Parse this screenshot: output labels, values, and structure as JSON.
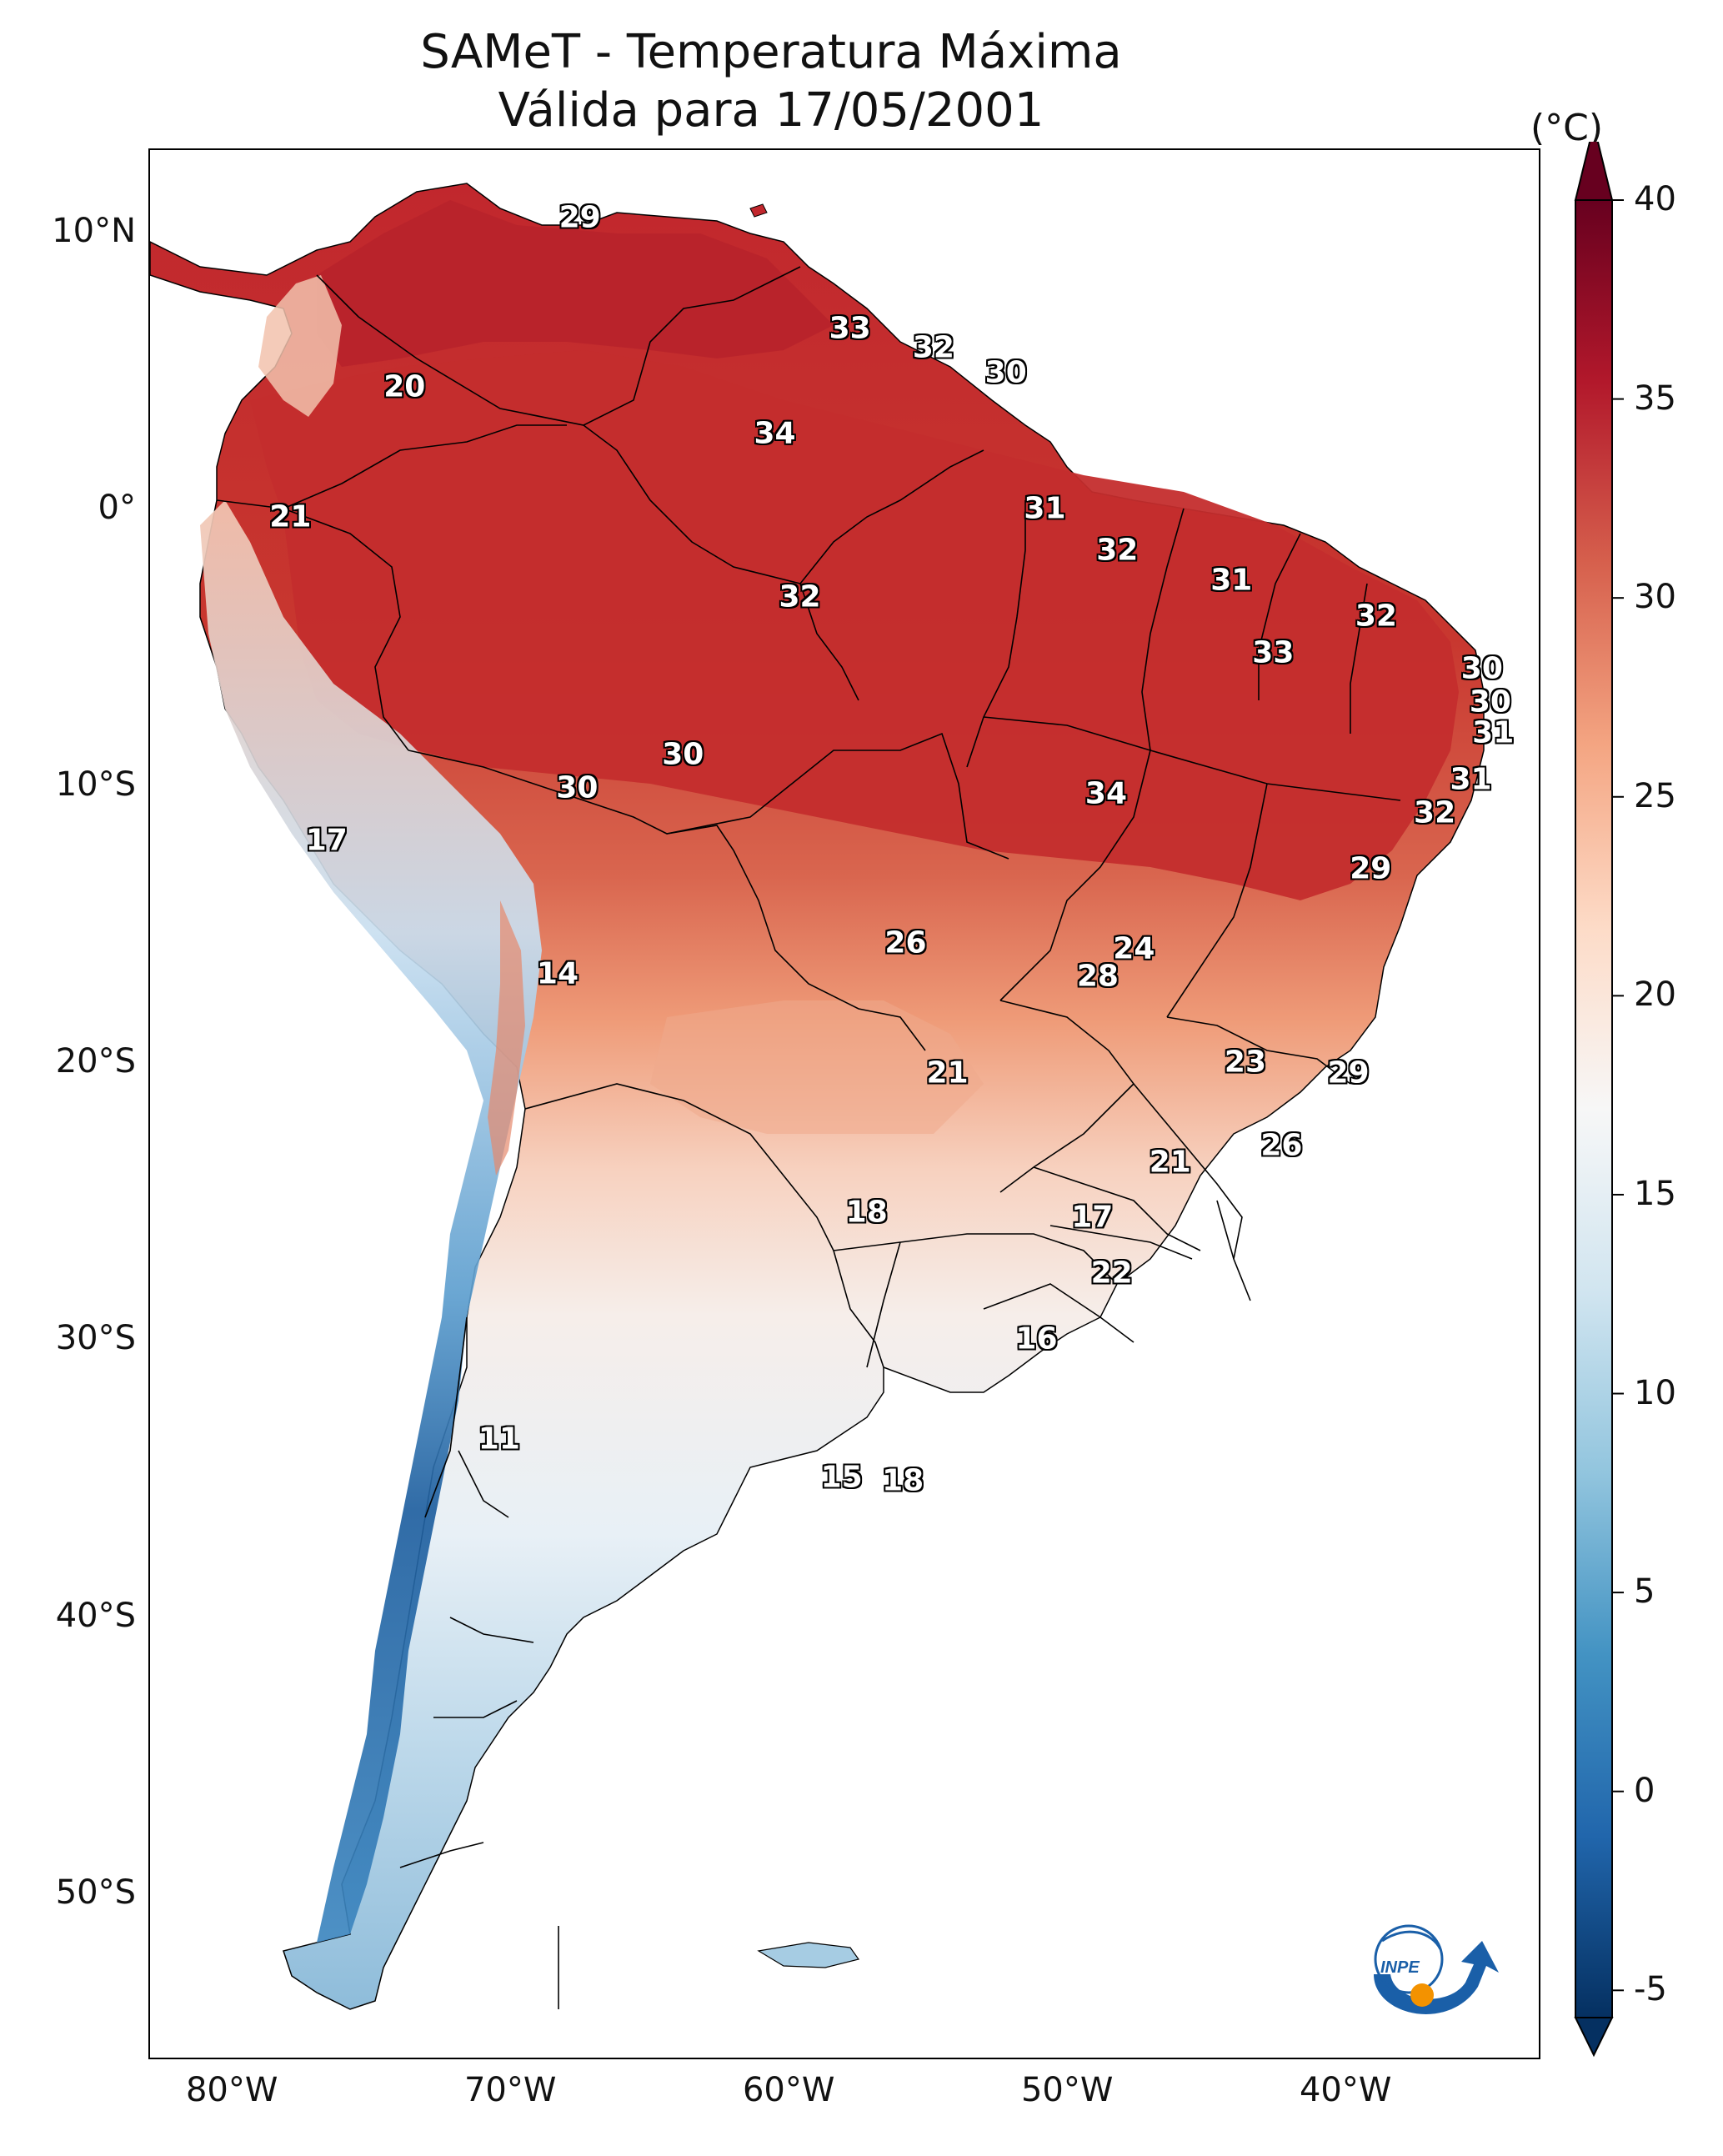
{
  "title": {
    "line1": "SAMeT - Temperatura Máxima",
    "line2": "Válida para 17/05/2001"
  },
  "map": {
    "extent_lon": [
      -83,
      -33
    ],
    "extent_lat": [
      -56,
      13
    ],
    "lat_ticks": [
      "10°N",
      "0°",
      "10°S",
      "20°S",
      "30°S",
      "40°S",
      "50°S"
    ],
    "lon_ticks": [
      "80°W",
      "70°W",
      "60°W",
      "50°W",
      "40°W"
    ],
    "isotherm_labels": [
      {
        "text": "29",
        "lon": -67.5,
        "lat": 10.5
      },
      {
        "text": "33",
        "lon": -57.8,
        "lat": 6.5
      },
      {
        "text": "32",
        "lon": -54.8,
        "lat": 5.8
      },
      {
        "text": "30",
        "lon": -52.2,
        "lat": 4.9
      },
      {
        "text": "20",
        "lon": -73.8,
        "lat": 4.4
      },
      {
        "text": "34",
        "lon": -60.5,
        "lat": 2.7
      },
      {
        "text": "21",
        "lon": -77.9,
        "lat": -0.3
      },
      {
        "text": "31",
        "lon": -50.8,
        "lat": 0.0
      },
      {
        "text": "32",
        "lon": -48.2,
        "lat": -1.5
      },
      {
        "text": "31",
        "lon": -44.1,
        "lat": -2.6
      },
      {
        "text": "32",
        "lon": -59.6,
        "lat": -3.2
      },
      {
        "text": "32",
        "lon": -38.9,
        "lat": -3.9
      },
      {
        "text": "33",
        "lon": -42.6,
        "lat": -5.2
      },
      {
        "text": "30",
        "lon": -35.1,
        "lat": -5.8
      },
      {
        "text": "30",
        "lon": -34.8,
        "lat": -7.0
      },
      {
        "text": "31",
        "lon": -34.7,
        "lat": -8.1
      },
      {
        "text": "30",
        "lon": -63.8,
        "lat": -8.9
      },
      {
        "text": "30",
        "lon": -67.6,
        "lat": -10.1
      },
      {
        "text": "34",
        "lon": -48.6,
        "lat": -10.3
      },
      {
        "text": "31",
        "lon": -35.5,
        "lat": -9.8
      },
      {
        "text": "32",
        "lon": -36.8,
        "lat": -11.0
      },
      {
        "text": "17",
        "lon": -76.6,
        "lat": -12.0
      },
      {
        "text": "29",
        "lon": -39.1,
        "lat": -13.0
      },
      {
        "text": "26",
        "lon": -55.8,
        "lat": -15.7
      },
      {
        "text": "24",
        "lon": -47.6,
        "lat": -15.9
      },
      {
        "text": "28",
        "lon": -48.9,
        "lat": -16.9
      },
      {
        "text": "14",
        "lon": -68.3,
        "lat": -16.8
      },
      {
        "text": "23",
        "lon": -43.6,
        "lat": -20.0
      },
      {
        "text": "29",
        "lon": -39.9,
        "lat": -20.4
      },
      {
        "text": "21",
        "lon": -54.3,
        "lat": -20.4
      },
      {
        "text": "26",
        "lon": -42.3,
        "lat": -23.0
      },
      {
        "text": "21",
        "lon": -46.3,
        "lat": -23.6
      },
      {
        "text": "18",
        "lon": -57.2,
        "lat": -25.4
      },
      {
        "text": "17",
        "lon": -49.1,
        "lat": -25.6
      },
      {
        "text": "22",
        "lon": -48.4,
        "lat": -27.6
      },
      {
        "text": "16",
        "lon": -51.1,
        "lat": -30.0
      },
      {
        "text": "11",
        "lon": -70.4,
        "lat": -33.6
      },
      {
        "text": "15",
        "lon": -58.1,
        "lat": -35.0
      },
      {
        "text": "18",
        "lon": -55.9,
        "lat": -35.1
      }
    ]
  },
  "colorbar": {
    "unit": "(°C)",
    "min": -5,
    "max": 40,
    "ticks": [
      "40",
      "35",
      "30",
      "25",
      "20",
      "15",
      "10",
      "5",
      "0",
      "-5"
    ],
    "colors_high_to_low": [
      "#67001f",
      "#b2182b",
      "#d6604d",
      "#f4a582",
      "#fddbc7",
      "#f7f7f7",
      "#d1e5f0",
      "#92c5de",
      "#4393c3",
      "#2166ac",
      "#053061"
    ]
  },
  "logo": {
    "text": "INPE",
    "colors": {
      "blue": "#1a5fa8",
      "orange": "#f39200"
    }
  }
}
